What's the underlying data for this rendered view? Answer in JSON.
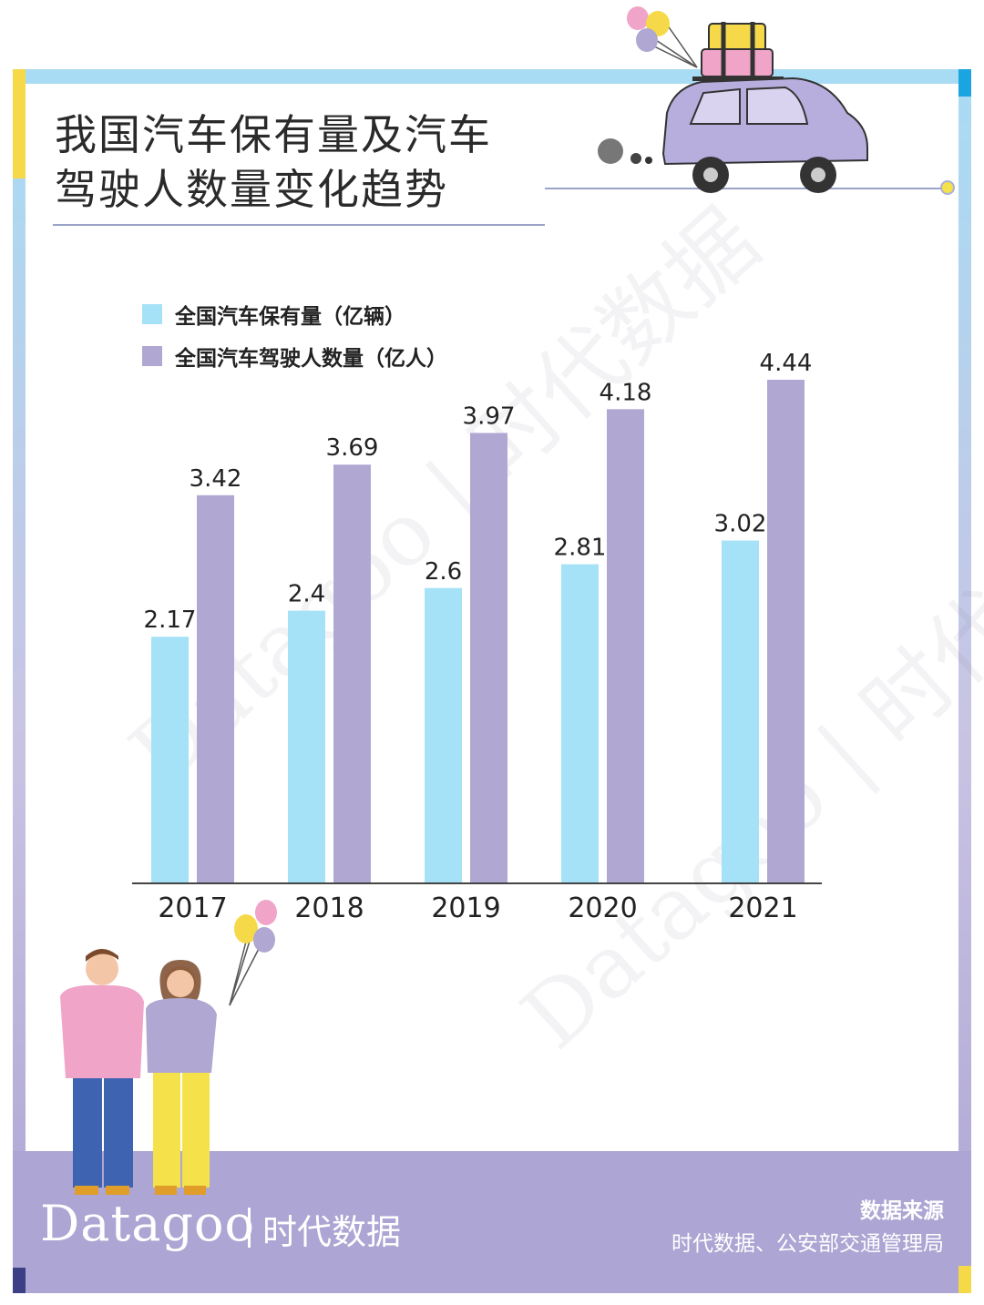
{
  "title": {
    "line1": "我国汽车保有量及汽车",
    "line2": "驾驶人数量变化趋势"
  },
  "colors": {
    "series1": "#a5e1f7",
    "series2": "#b0a7d2",
    "axis": "#444444",
    "footer": "#ada5d3"
  },
  "chart_data": {
    "type": "bar",
    "categories": [
      "2017",
      "2018",
      "2019",
      "2020",
      "2021"
    ],
    "series": [
      {
        "name": "全国汽车保有量（亿辆）",
        "values": [
          2.17,
          2.4,
          2.6,
          2.81,
          3.02
        ]
      },
      {
        "name": "全国汽车驾驶人数量（亿人）",
        "values": [
          3.42,
          3.69,
          3.97,
          4.18,
          4.44
        ]
      }
    ],
    "value_labels": [
      [
        "2.17",
        "2.4",
        "2.6",
        "2.81",
        "3.02"
      ],
      [
        "3.42",
        "3.69",
        "3.97",
        "4.18",
        "4.44"
      ]
    ],
    "ylim": [
      0,
      4.44
    ],
    "grid": false,
    "legend": "top-left"
  },
  "watermark": {
    "text1": "Datagoo | 时代数据",
    "text2": "Datagoo | 时代数据"
  },
  "footer": {
    "brand": "Datagoo",
    "brand_cn": "时代数据",
    "source_title": "数据来源",
    "source_text": "时代数据、公安部交通管理局"
  }
}
